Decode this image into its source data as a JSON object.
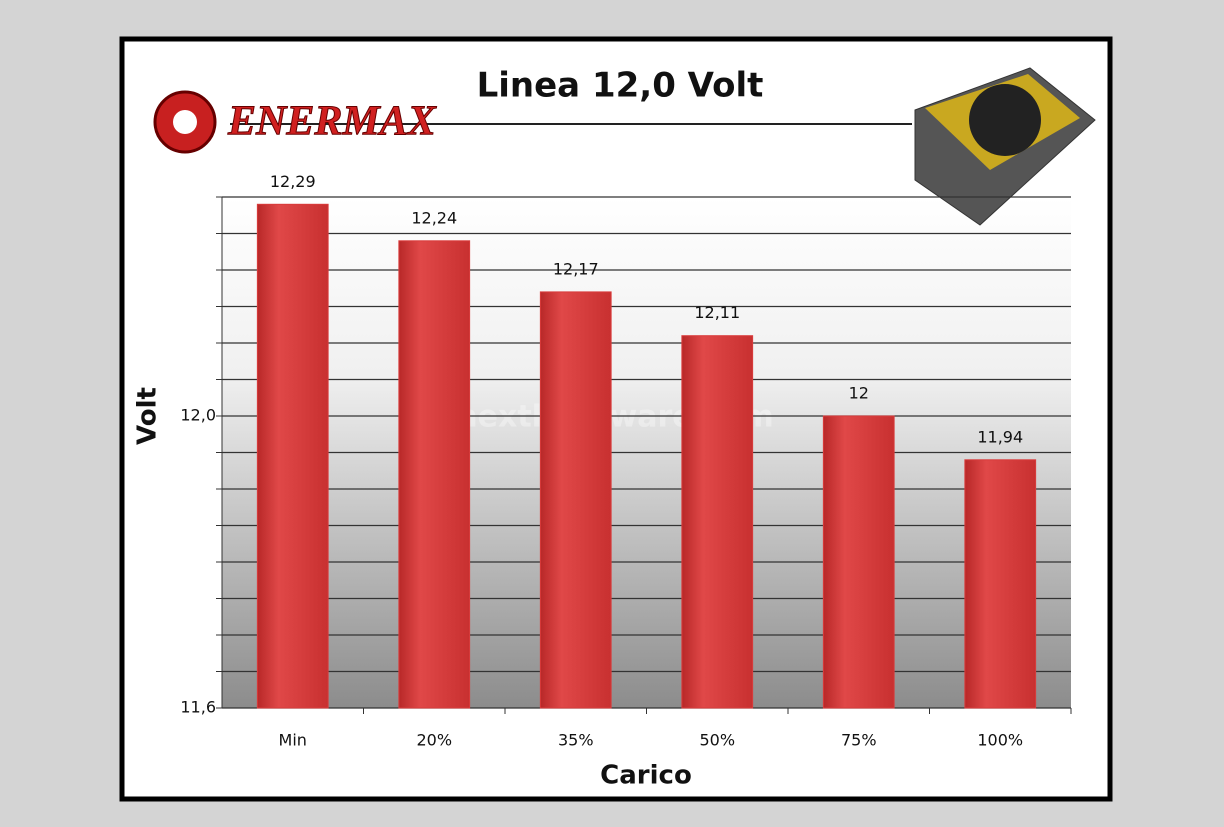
{
  "chart_data": {
    "type": "bar",
    "title": "Linea 12,0 Volt",
    "logo": "ENERMAX",
    "watermark": "nexthardware.com",
    "x_label": "Carico",
    "y_label": "Volt",
    "categories": [
      "Min",
      "20%",
      "35%",
      "50%",
      "75%",
      "100%"
    ],
    "values": [
      12.29,
      12.24,
      12.17,
      12.11,
      12,
      11.94
    ],
    "value_labels": [
      "12,29",
      "12,24",
      "12,17",
      "12,11",
      "12",
      "11,94"
    ],
    "color": "#d93b3b",
    "ylim": [
      11.6,
      12.3
    ],
    "yticks": [
      {
        "value": 11.6,
        "label": "11,6"
      },
      {
        "value": 11.65,
        "label": null
      },
      {
        "value": 11.7,
        "label": null
      },
      {
        "value": 11.75,
        "label": null
      },
      {
        "value": 11.8,
        "label": null
      },
      {
        "value": 11.85,
        "label": null
      },
      {
        "value": 11.9,
        "label": null
      },
      {
        "value": 11.95,
        "label": null
      },
      {
        "value": 12.0,
        "label": "12,0"
      },
      {
        "value": 12.05,
        "label": null
      },
      {
        "value": 12.1,
        "label": null
      },
      {
        "value": 12.15,
        "label": null
      },
      {
        "value": 12.2,
        "label": null
      },
      {
        "value": 12.25,
        "label": null
      },
      {
        "value": 12.3,
        "label": null
      }
    ],
    "grid": true
  }
}
